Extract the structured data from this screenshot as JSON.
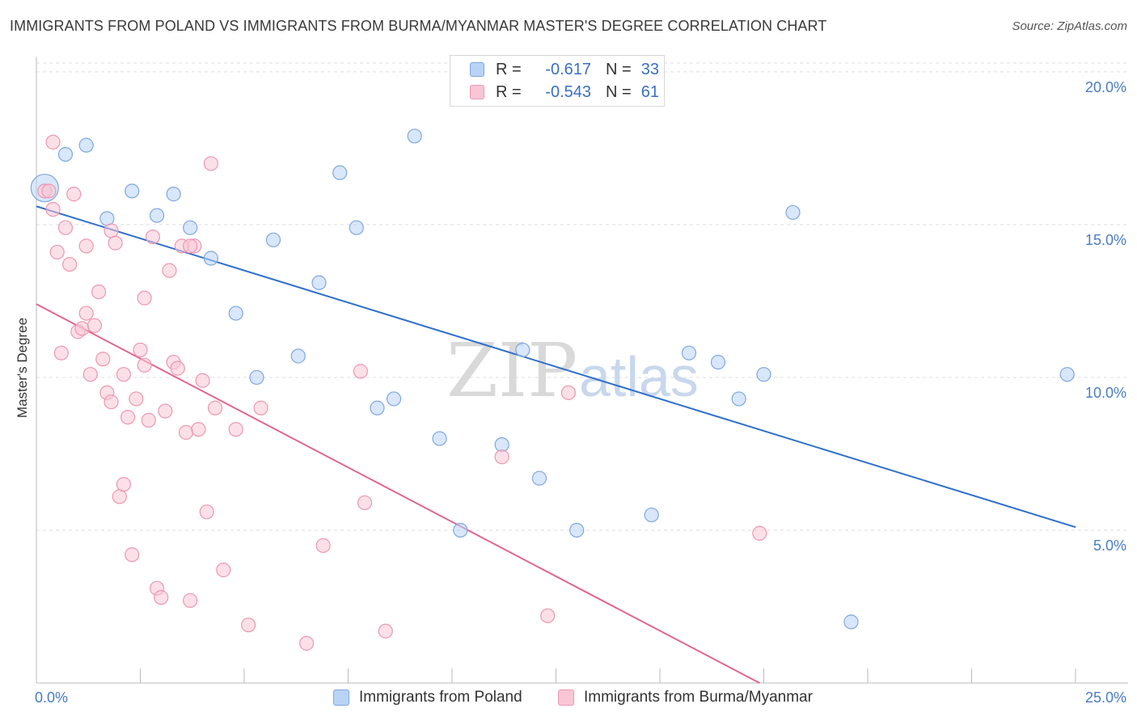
{
  "title": "IMMIGRANTS FROM POLAND VS IMMIGRANTS FROM BURMA/MYANMAR MASTER'S DEGREE CORRELATION CHART",
  "source": "Source: ZipAtlas.com",
  "watermark": {
    "zip": "ZIP",
    "atlas": "atlas"
  },
  "legend": {
    "rows": [
      {
        "r_label": "R =",
        "r_value": "-0.617",
        "n_label": "N =",
        "n_value": "33"
      },
      {
        "r_label": "R =",
        "r_value": "-0.543",
        "n_label": "N =",
        "n_value": "61"
      }
    ]
  },
  "colors": {
    "poland_fill": "#b9d3f5",
    "poland_stroke": "#7ea8e0",
    "poland_line": "#2f6fcc",
    "burma_fill": "#f9c6d6",
    "burma_stroke": "#ec97b2",
    "burma_line": "#e0678f",
    "grid": "#dcdcdc",
    "tick_text": "#4a7cc4"
  },
  "chart_data": {
    "type": "scatter",
    "title": "IMMIGRANTS FROM POLAND VS IMMIGRANTS FROM BURMA/MYANMAR MASTER'S DEGREE CORRELATION CHART",
    "xlabel": "",
    "ylabel": "Master's Degree",
    "xlim": [
      0,
      25
    ],
    "ylim": [
      0,
      20.5
    ],
    "x_tick_labels": [
      "0.0%",
      "25.0%"
    ],
    "y_ticks": [
      5,
      10,
      15,
      20
    ],
    "y_tick_labels": [
      "5.0%",
      "10.0%",
      "15.0%",
      "20.0%"
    ],
    "grid": true,
    "legend_position": "top-center",
    "series": [
      {
        "name": "Immigrants from Poland",
        "color": "#b9d3f5",
        "trend": {
          "x": [
            0,
            25
          ],
          "y": [
            15.6,
            5.1
          ]
        },
        "points": [
          {
            "x": 0.2,
            "y": 16.2,
            "big": true
          },
          {
            "x": 0.7,
            "y": 17.3
          },
          {
            "x": 1.2,
            "y": 17.6
          },
          {
            "x": 1.7,
            "y": 15.2
          },
          {
            "x": 2.3,
            "y": 16.1
          },
          {
            "x": 2.9,
            "y": 15.3
          },
          {
            "x": 3.3,
            "y": 16.0
          },
          {
            "x": 3.7,
            "y": 14.9
          },
          {
            "x": 4.2,
            "y": 13.9
          },
          {
            "x": 4.8,
            "y": 12.1
          },
          {
            "x": 5.3,
            "y": 10.0
          },
          {
            "x": 5.7,
            "y": 14.5
          },
          {
            "x": 6.3,
            "y": 10.7
          },
          {
            "x": 6.8,
            "y": 13.1
          },
          {
            "x": 7.3,
            "y": 16.7
          },
          {
            "x": 7.7,
            "y": 14.9
          },
          {
            "x": 8.2,
            "y": 9.0
          },
          {
            "x": 8.6,
            "y": 9.3
          },
          {
            "x": 9.1,
            "y": 17.9
          },
          {
            "x": 9.7,
            "y": 8.0
          },
          {
            "x": 10.2,
            "y": 5.0
          },
          {
            "x": 11.2,
            "y": 7.8
          },
          {
            "x": 11.7,
            "y": 10.9
          },
          {
            "x": 12.1,
            "y": 6.7
          },
          {
            "x": 13.0,
            "y": 5.0
          },
          {
            "x": 14.8,
            "y": 5.5
          },
          {
            "x": 15.7,
            "y": 10.8
          },
          {
            "x": 16.4,
            "y": 10.5
          },
          {
            "x": 16.9,
            "y": 9.3
          },
          {
            "x": 17.5,
            "y": 10.1
          },
          {
            "x": 18.2,
            "y": 15.4
          },
          {
            "x": 19.6,
            "y": 2.0
          },
          {
            "x": 24.8,
            "y": 10.1
          }
        ]
      },
      {
        "name": "Immigrants from Burma/Myanmar",
        "color": "#f9c6d6",
        "trend": {
          "x": [
            0,
            17.4
          ],
          "y": [
            12.4,
            0
          ]
        },
        "points": [
          {
            "x": 0.2,
            "y": 16.1
          },
          {
            "x": 0.3,
            "y": 16.1
          },
          {
            "x": 0.4,
            "y": 15.5
          },
          {
            "x": 0.4,
            "y": 17.7
          },
          {
            "x": 0.5,
            "y": 14.1
          },
          {
            "x": 0.6,
            "y": 10.8
          },
          {
            "x": 0.7,
            "y": 14.9
          },
          {
            "x": 0.8,
            "y": 13.7
          },
          {
            "x": 0.9,
            "y": 16.0
          },
          {
            "x": 1.0,
            "y": 11.5
          },
          {
            "x": 1.1,
            "y": 11.6
          },
          {
            "x": 1.2,
            "y": 12.1
          },
          {
            "x": 1.2,
            "y": 14.3
          },
          {
            "x": 1.3,
            "y": 10.1
          },
          {
            "x": 1.4,
            "y": 11.7
          },
          {
            "x": 1.5,
            "y": 12.8
          },
          {
            "x": 1.6,
            "y": 10.6
          },
          {
            "x": 1.7,
            "y": 9.5
          },
          {
            "x": 1.8,
            "y": 9.2
          },
          {
            "x": 1.8,
            "y": 14.8
          },
          {
            "x": 1.9,
            "y": 14.4
          },
          {
            "x": 2.0,
            "y": 6.1
          },
          {
            "x": 2.1,
            "y": 10.1
          },
          {
            "x": 2.1,
            "y": 6.5
          },
          {
            "x": 2.2,
            "y": 8.7
          },
          {
            "x": 2.3,
            "y": 4.2
          },
          {
            "x": 2.4,
            "y": 9.3
          },
          {
            "x": 2.5,
            "y": 10.9
          },
          {
            "x": 2.6,
            "y": 12.6
          },
          {
            "x": 2.6,
            "y": 10.4
          },
          {
            "x": 2.7,
            "y": 8.6
          },
          {
            "x": 2.8,
            "y": 14.6
          },
          {
            "x": 2.9,
            "y": 3.1
          },
          {
            "x": 3.0,
            "y": 2.8
          },
          {
            "x": 3.1,
            "y": 8.9
          },
          {
            "x": 3.2,
            "y": 13.5
          },
          {
            "x": 3.3,
            "y": 10.5
          },
          {
            "x": 3.4,
            "y": 10.3
          },
          {
            "x": 3.5,
            "y": 14.3
          },
          {
            "x": 3.6,
            "y": 8.2
          },
          {
            "x": 3.7,
            "y": 2.7
          },
          {
            "x": 3.8,
            "y": 14.3
          },
          {
            "x": 3.9,
            "y": 8.3
          },
          {
            "x": 4.0,
            "y": 9.9
          },
          {
            "x": 4.1,
            "y": 5.6
          },
          {
            "x": 4.2,
            "y": 17.0
          },
          {
            "x": 4.3,
            "y": 9.0
          },
          {
            "x": 4.5,
            "y": 3.7
          },
          {
            "x": 4.8,
            "y": 8.3
          },
          {
            "x": 5.1,
            "y": 1.9
          },
          {
            "x": 5.4,
            "y": 9.0
          },
          {
            "x": 6.5,
            "y": 1.3
          },
          {
            "x": 6.9,
            "y": 4.5
          },
          {
            "x": 7.8,
            "y": 10.2
          },
          {
            "x": 7.9,
            "y": 5.9
          },
          {
            "x": 8.4,
            "y": 1.7
          },
          {
            "x": 11.2,
            "y": 7.4
          },
          {
            "x": 12.3,
            "y": 2.2
          },
          {
            "x": 12.8,
            "y": 9.5
          },
          {
            "x": 17.4,
            "y": 4.9
          },
          {
            "x": 3.7,
            "y": 14.3
          }
        ]
      }
    ]
  }
}
